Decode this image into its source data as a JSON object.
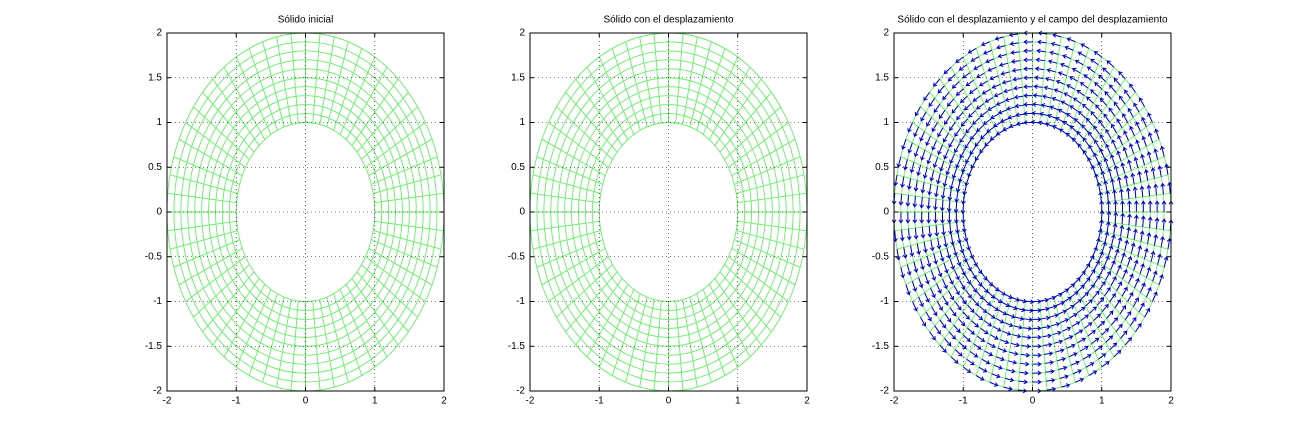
{
  "chart_data": [
    {
      "type": "mesh",
      "title": "Sólido inicial",
      "inner_radius": 1,
      "outer_radius": 2,
      "rings": 10,
      "spokes": 60,
      "color": "#66ee66",
      "xlim": [
        -2,
        2
      ],
      "ylim": [
        -2,
        2
      ],
      "xticks": [
        -2,
        -1,
        0,
        1,
        2
      ],
      "yticks": [
        -2,
        -1.5,
        -1,
        -0.5,
        0,
        0.5,
        1,
        1.5,
        2
      ],
      "grid": true
    },
    {
      "type": "mesh",
      "title": "Sólido con el desplazamiento",
      "inner_radius": 1,
      "outer_radius": 2,
      "rings": 10,
      "spokes": 60,
      "color": "#66ee66",
      "xlim": [
        -2,
        2
      ],
      "ylim": [
        -2,
        2
      ],
      "xticks": [
        -2,
        -1,
        0,
        1,
        2
      ],
      "yticks": [
        -2,
        -1.5,
        -1,
        -0.5,
        0,
        0.5,
        1,
        1.5,
        2
      ],
      "grid": true
    },
    {
      "type": "quiver",
      "title": "Sólido con el desplazamiento y el campo del desplazamiento",
      "inner_radius": 1,
      "outer_radius": 2,
      "rings": 10,
      "spokes": 60,
      "color": "#66ee66",
      "arrow_color": "#0000cc",
      "xlim": [
        -2,
        2
      ],
      "ylim": [
        -2,
        2
      ],
      "xticks": [
        -2,
        -1,
        0,
        1,
        2
      ],
      "yticks": [
        -2,
        -1.5,
        -1,
        -0.5,
        0,
        0.5,
        1,
        1.5,
        2
      ],
      "grid": true
    }
  ]
}
